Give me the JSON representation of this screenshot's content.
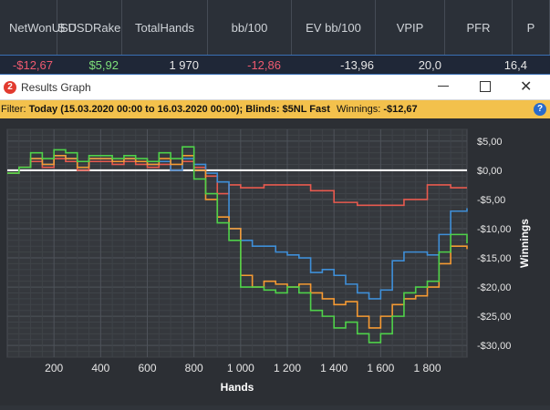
{
  "stats_table": {
    "headers": [
      {
        "id": "net-won",
        "label": "Net\nWon\nUSD"
      },
      {
        "id": "usd-rake",
        "label": "$ USD\nRake"
      },
      {
        "id": "total-hands",
        "label": "Total\nHands"
      },
      {
        "id": "bb100",
        "label": "bb/100"
      },
      {
        "id": "ev-bb100",
        "label": "EV bb/100"
      },
      {
        "id": "vpip",
        "label": "VPIP"
      },
      {
        "id": "pfr",
        "label": "PFR"
      },
      {
        "id": "more",
        "label": "P"
      }
    ],
    "row": [
      "-$12,67",
      "$5,92",
      "1 970",
      "-12,86",
      "-13,96",
      "20,0",
      "16,4"
    ]
  },
  "window": {
    "title": "Results Graph",
    "app_icon": "pokertracker-logo"
  },
  "filter": {
    "label": "Filter:",
    "value": "Today (15.03.2020 00:00 to 16.03.2020 00:00); Blinds: $5NL Fast",
    "winnings_label": "Winnings:",
    "winnings_value": "-$12,67"
  },
  "colors": {
    "negative": "#ef5a6f",
    "positive": "#7ee07a",
    "accent": "#3a6fb4"
  },
  "chart_data": {
    "type": "line",
    "xlabel": "Hands",
    "ylabel": "Winnings",
    "xlim": [
      0,
      1970
    ],
    "ylim": [
      -32,
      7
    ],
    "x_ticks": [
      200,
      400,
      600,
      800,
      1000,
      1200,
      1400,
      1600,
      1800
    ],
    "x_tick_labels": [
      "200",
      "400",
      "600",
      "800",
      "1 000",
      "1 200",
      "1 400",
      "1 600",
      "1 800"
    ],
    "y_ticks": [
      5,
      0,
      -5,
      -10,
      -15,
      -20,
      -25,
      -30
    ],
    "y_tick_labels": [
      "$5,00",
      "$0,00",
      "-$5,00",
      "-$10,00",
      "-$15,00",
      "-$20,00",
      "-$25,00",
      "-$30,00"
    ],
    "series": [
      {
        "color": "#e85a4f",
        "x": [
          0,
          50,
          100,
          150,
          200,
          250,
          300,
          350,
          400,
          450,
          500,
          550,
          600,
          650,
          700,
          750,
          800,
          850,
          900,
          950,
          1000,
          1100,
          1200,
          1300,
          1400,
          1500,
          1600,
          1700,
          1800,
          1900,
          1970
        ],
        "y": [
          -0.5,
          0.5,
          1.5,
          0.5,
          2,
          1.5,
          0,
          1.5,
          1.5,
          1,
          1.5,
          1,
          0.5,
          1,
          0,
          1.5,
          0.5,
          -1,
          -4,
          -2.5,
          -3,
          -2.5,
          -2.5,
          -3.5,
          -5.5,
          -6,
          -6,
          -5,
          -2.5,
          -3,
          -3
        ]
      },
      {
        "color": "#3f8fd8",
        "x": [
          0,
          50,
          100,
          150,
          200,
          250,
          300,
          350,
          400,
          450,
          500,
          550,
          600,
          650,
          700,
          750,
          800,
          850,
          900,
          950,
          1000,
          1050,
          1100,
          1150,
          1200,
          1250,
          1300,
          1350,
          1400,
          1450,
          1500,
          1550,
          1600,
          1650,
          1700,
          1750,
          1800,
          1850,
          1900,
          1970
        ],
        "y": [
          -0.5,
          0.5,
          2,
          1,
          2.5,
          2,
          0.5,
          2,
          2,
          1.5,
          2,
          1.5,
          1,
          1.5,
          0,
          2,
          1,
          -0.5,
          -2,
          -10,
          -12,
          -13,
          -13,
          -14,
          -14.5,
          -15,
          -17.5,
          -17,
          -18,
          -19.5,
          -21,
          -22,
          -20.5,
          -15.5,
          -14,
          -14,
          -14.5,
          -11,
          -7,
          -6.5
        ]
      },
      {
        "color": "#f59a33",
        "x": [
          0,
          50,
          100,
          150,
          200,
          250,
          300,
          350,
          400,
          450,
          500,
          550,
          600,
          650,
          700,
          750,
          800,
          850,
          900,
          950,
          1000,
          1050,
          1100,
          1150,
          1200,
          1250,
          1300,
          1350,
          1400,
          1450,
          1500,
          1550,
          1600,
          1650,
          1700,
          1750,
          1800,
          1850,
          1900,
          1970
        ],
        "y": [
          -0.5,
          0.5,
          2,
          1,
          2.5,
          2,
          0.5,
          2,
          2,
          1.5,
          2,
          1.5,
          1,
          2,
          1,
          2.5,
          0,
          -5,
          -8,
          -10,
          -18,
          -20,
          -19,
          -19.5,
          -20,
          -19.5,
          -21,
          -22,
          -23,
          -22.5,
          -25,
          -27,
          -25,
          -23,
          -22,
          -21.5,
          -20,
          -16,
          -13,
          -13.5
        ]
      },
      {
        "color": "#4fd14a",
        "x": [
          0,
          50,
          100,
          150,
          200,
          250,
          300,
          350,
          400,
          450,
          500,
          550,
          600,
          650,
          700,
          750,
          800,
          850,
          900,
          950,
          1000,
          1050,
          1100,
          1150,
          1200,
          1250,
          1300,
          1350,
          1400,
          1450,
          1500,
          1550,
          1600,
          1650,
          1700,
          1750,
          1800,
          1850,
          1900,
          1970
        ],
        "y": [
          -0.5,
          0.5,
          3,
          2,
          3.5,
          3,
          1.5,
          2.5,
          2.5,
          2,
          2.5,
          2,
          1.5,
          3,
          2,
          4,
          -1.5,
          -4,
          -9,
          -12,
          -20,
          -20,
          -20.5,
          -21,
          -20,
          -21,
          -24,
          -25,
          -27,
          -26,
          -28,
          -29.5,
          -28,
          -25,
          -21,
          -20,
          -19,
          -14,
          -11,
          -12.5
        ]
      }
    ],
    "zero_line": 0
  }
}
